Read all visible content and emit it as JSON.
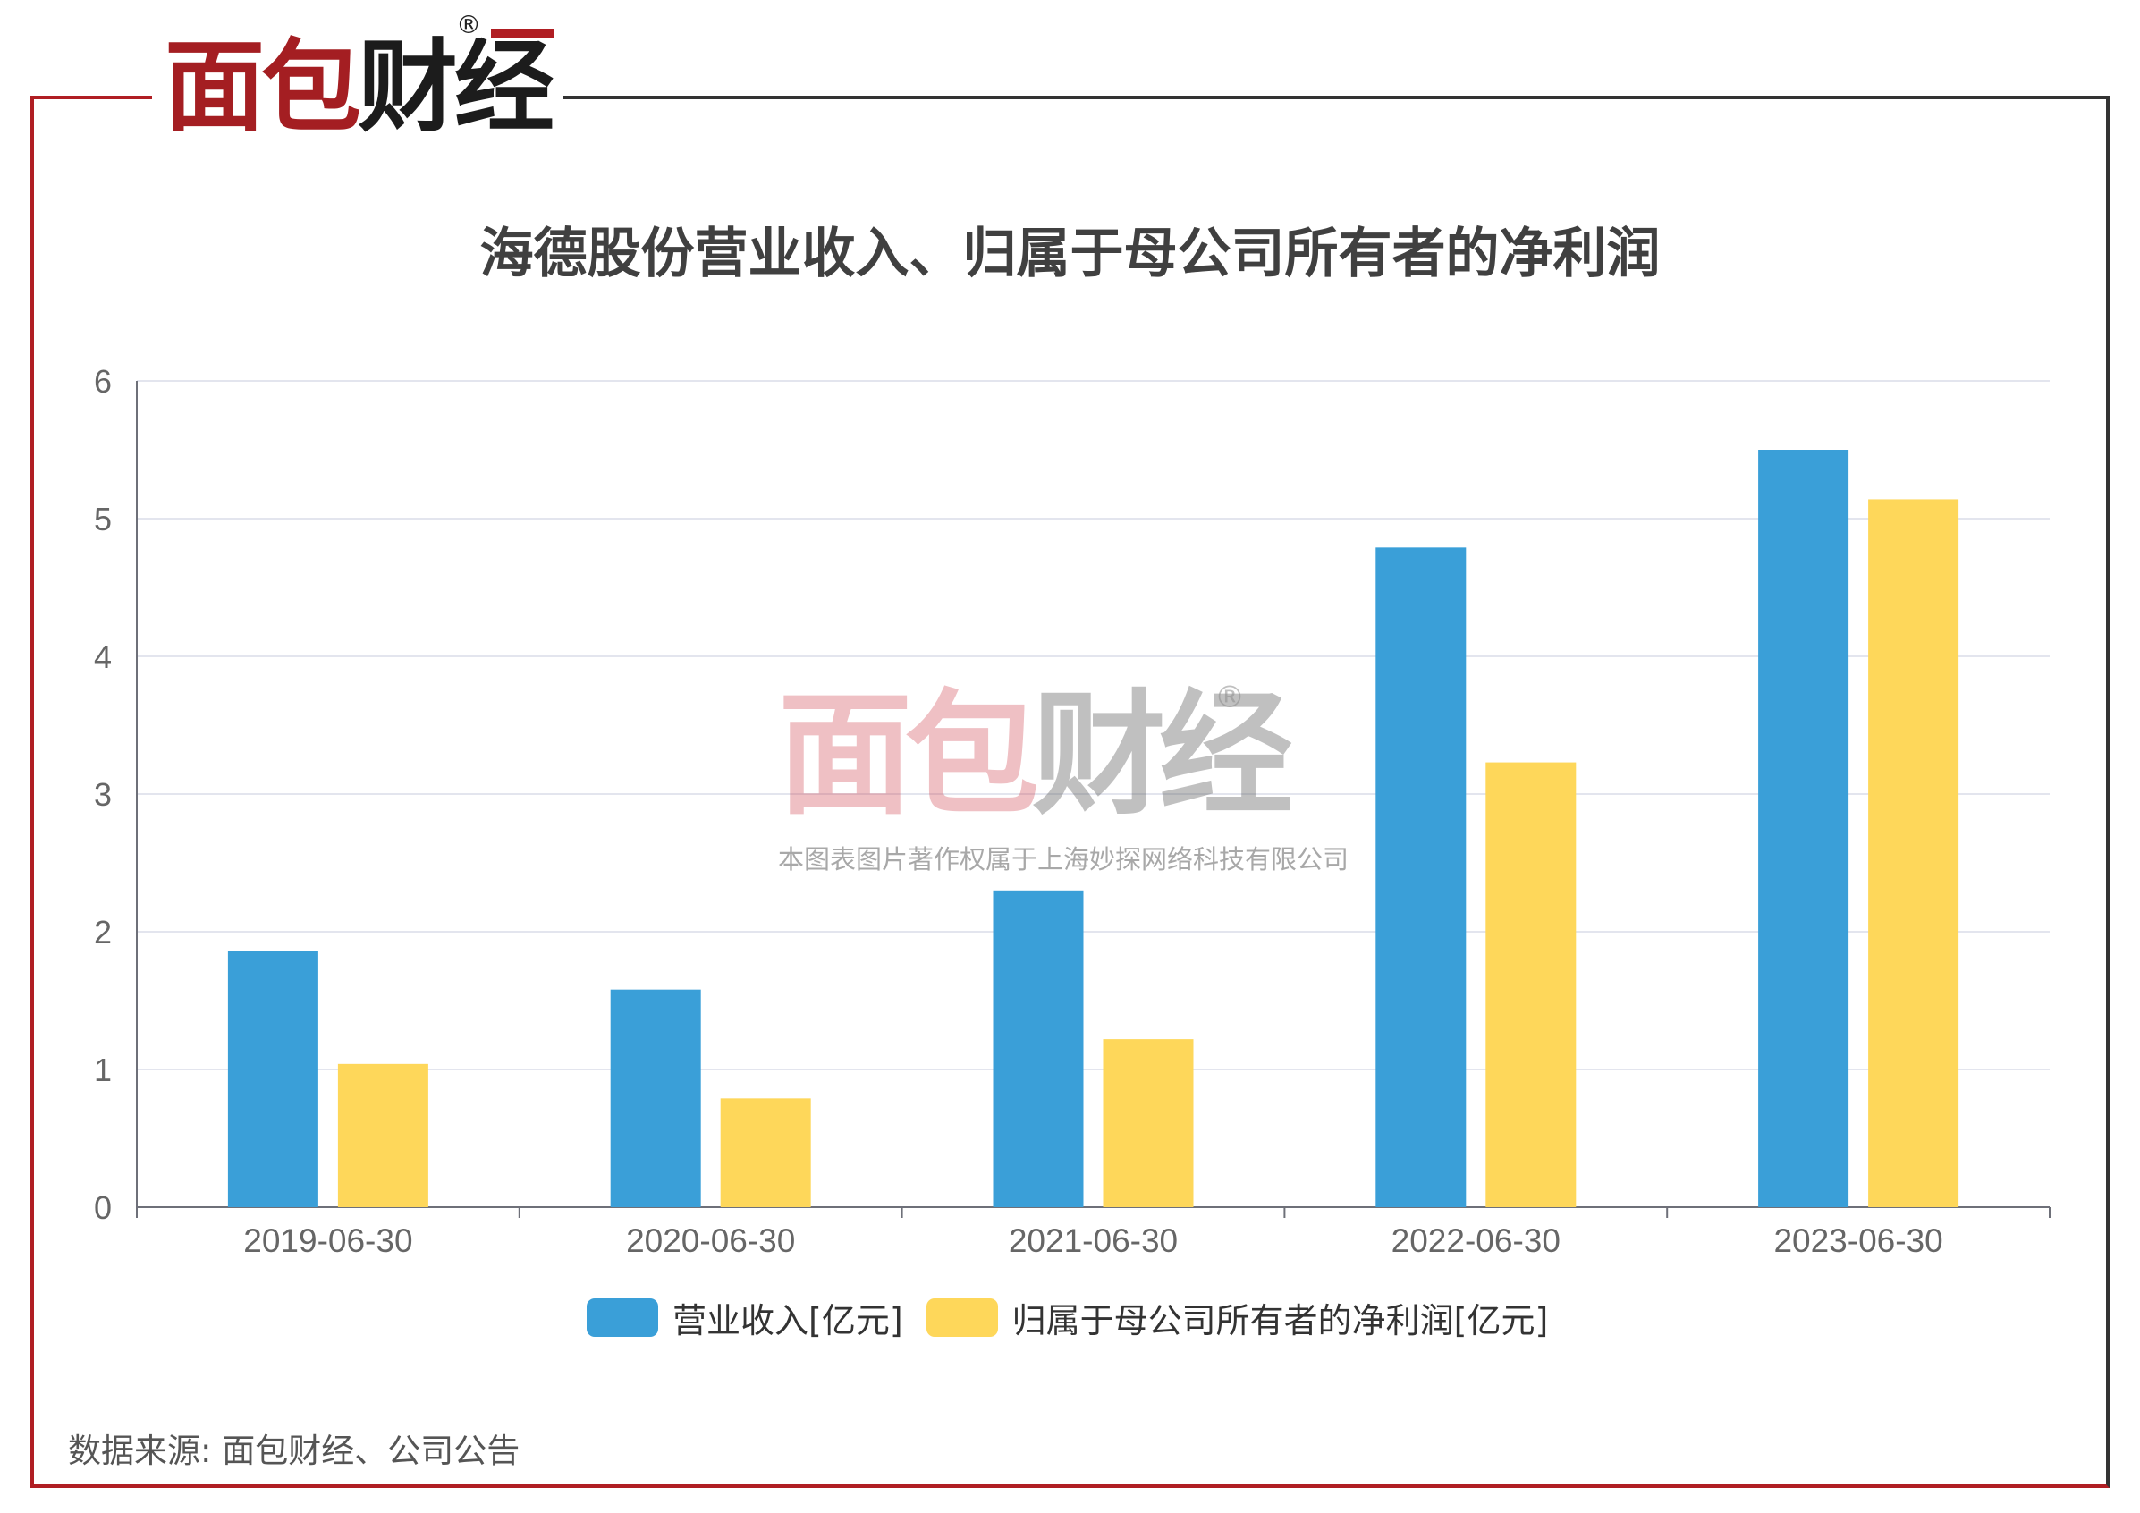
{
  "logo": {
    "text_part1": "面包",
    "text_part2": "财经",
    "registered": "®"
  },
  "watermark": {
    "text_part1": "面包",
    "text_part2": "财经",
    "registered": "®",
    "caption": "本图表图片著作权属于上海妙探网络科技有限公司"
  },
  "source": "数据来源: 面包财经、公司公告",
  "colors": {
    "brand_red": "#b01e23",
    "frame_dark": "#333333",
    "gridline": "#e3e5ee",
    "axis": "#6e7079"
  },
  "chart_data": {
    "type": "bar",
    "title": "海德股份营业收入、归属于母公司所有者的净利润",
    "xlabel": "",
    "ylabel": "",
    "categories": [
      "2019-06-30",
      "2020-06-30",
      "2021-06-30",
      "2022-06-30",
      "2023-06-30"
    ],
    "series": [
      {
        "name": "营业收入[亿元]",
        "color": "#3a9fd8",
        "values": [
          1.86,
          1.58,
          2.3,
          4.79,
          5.5
        ]
      },
      {
        "name": "归属于母公司所有者的净利润[亿元]",
        "color": "#fed75a",
        "values": [
          1.04,
          0.79,
          1.22,
          3.23,
          5.14
        ]
      }
    ],
    "ylim": [
      0,
      6
    ],
    "yticks": [
      0,
      1,
      2,
      3,
      4,
      5,
      6
    ],
    "grid": true,
    "legend_position": "bottom-center"
  }
}
